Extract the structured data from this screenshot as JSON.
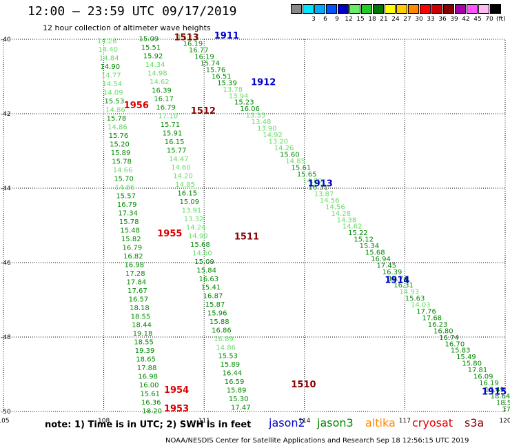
{
  "header": {
    "title": "12:00 – 23:59 UTC 09/17/2019",
    "subtitle": "12 hour collection of altimeter wave heights"
  },
  "color_scale": {
    "unit": "(ft)",
    "entries": [
      {
        "label": "",
        "color": "#888888"
      },
      {
        "label": "3",
        "color": "#00e5ff"
      },
      {
        "label": "6",
        "color": "#00aaff"
      },
      {
        "label": "9",
        "color": "#0055ff"
      },
      {
        "label": "12",
        "color": "#0000cc"
      },
      {
        "label": "15",
        "color": "#66ee66"
      },
      {
        "label": "18",
        "color": "#22cc22"
      },
      {
        "label": "21",
        "color": "#007700"
      },
      {
        "label": "24",
        "color": "#ffff00"
      },
      {
        "label": "27",
        "color": "#ffcc00"
      },
      {
        "label": "30",
        "color": "#ff8800"
      },
      {
        "label": "33",
        "color": "#ff0000"
      },
      {
        "label": "36",
        "color": "#cc0000"
      },
      {
        "label": "39",
        "color": "#880000"
      },
      {
        "label": "42",
        "color": "#aa00aa"
      },
      {
        "label": "45",
        "color": "#ff55ff"
      },
      {
        "label": "70",
        "color": "#ffbbee"
      },
      {
        "label": "",
        "color": "#000000"
      }
    ]
  },
  "map": {
    "lon_labels": [
      "105",
      "108",
      "111",
      "114",
      "117",
      "120"
    ],
    "lat_labels": [
      "-40",
      "-42",
      "-44",
      "-46",
      "-48",
      "-50"
    ],
    "grid_color": "#000000"
  },
  "tracks": {
    "colors": {
      "jason2": "#0000cc",
      "jason3": "#008800",
      "jason3_light": "#66dd66",
      "cryosat": "#dd0000",
      "s3a": "#880000"
    },
    "time_labels": [
      {
        "text": "1513",
        "sat": "s3a",
        "lon": 110.1,
        "lat": -40.03
      },
      {
        "text": "1911",
        "sat": "jason2",
        "lon": 111.3,
        "lat": -39.98
      },
      {
        "text": "1912",
        "sat": "jason2",
        "lon": 112.4,
        "lat": -41.23
      },
      {
        "text": "1956",
        "sat": "cryosat",
        "lon": 108.6,
        "lat": -41.85
      },
      {
        "text": "1512",
        "sat": "s3a",
        "lon": 110.6,
        "lat": -42.0
      },
      {
        "text": "1913",
        "sat": "jason2",
        "lon": 114.1,
        "lat": -43.95
      },
      {
        "text": "1955",
        "sat": "cryosat",
        "lon": 109.6,
        "lat": -45.3
      },
      {
        "text": "1511",
        "sat": "s3a",
        "lon": 111.9,
        "lat": -45.38
      },
      {
        "text": "1914",
        "sat": "jason2",
        "lon": 116.4,
        "lat": -46.55
      },
      {
        "text": "1510",
        "sat": "s3a",
        "lon": 113.6,
        "lat": -49.35
      },
      {
        "text": "1954",
        "sat": "cryosat",
        "lon": 109.8,
        "lat": -49.5
      },
      {
        "text": "1915",
        "sat": "jason2",
        "lon": 119.3,
        "lat": -49.55
      },
      {
        "text": "1953",
        "sat": "cryosat",
        "lon": 109.8,
        "lat": -50.0
      }
    ],
    "tracks": [
      {
        "name": "track-cryosat",
        "start": [
          107.8,
          -40.1
        ],
        "end": [
          109.15,
          -50.05
        ],
        "values": [
          {
            "v": "14.26",
            "l": true
          },
          {
            "v": "14.40",
            "l": true
          },
          {
            "v": "14.84",
            "l": true
          },
          {
            "v": "14.90",
            "l": false
          },
          {
            "v": "14.77",
            "l": true
          },
          {
            "v": "14.54",
            "l": true
          },
          {
            "v": "14.09",
            "l": true
          },
          {
            "v": "15.53",
            "l": false
          },
          {
            "v": "14.86",
            "l": true
          },
          {
            "v": "15.78",
            "l": false
          },
          {
            "v": "14.86",
            "l": true
          },
          {
            "v": "15.76",
            "l": false
          },
          {
            "v": "15.20",
            "l": false
          },
          {
            "v": "15.89",
            "l": false
          },
          {
            "v": "15.78",
            "l": false
          },
          {
            "v": "14.66",
            "l": true
          },
          {
            "v": "15.70",
            "l": false
          },
          {
            "v": "14.86",
            "l": true
          },
          {
            "v": "15.57",
            "l": false
          },
          {
            "v": "16.79",
            "l": false
          },
          {
            "v": "17.34",
            "l": false
          },
          {
            "v": "15.78",
            "l": false
          },
          {
            "v": "15.48",
            "l": false
          },
          {
            "v": "15.82",
            "l": false
          },
          {
            "v": "16.79",
            "l": false
          },
          {
            "v": "16.82",
            "l": false
          },
          {
            "v": "16.98",
            "l": false
          },
          {
            "v": "17.28",
            "l": false
          },
          {
            "v": "17.84",
            "l": false
          },
          {
            "v": "17.67",
            "l": false
          },
          {
            "v": "16.57",
            "l": false
          },
          {
            "v": "18.18",
            "l": false
          },
          {
            "v": "18.55",
            "l": false
          },
          {
            "v": "18.44",
            "l": false
          },
          {
            "v": "19.18",
            "l": false
          },
          {
            "v": "18.55",
            "l": false
          },
          {
            "v": "19.39",
            "l": false
          },
          {
            "v": "18.65",
            "l": false
          },
          {
            "v": "17.88",
            "l": false
          },
          {
            "v": "16.98",
            "l": false
          },
          {
            "v": "16.00",
            "l": false
          },
          {
            "v": "15.61",
            "l": false
          },
          {
            "v": "16.36",
            "l": false
          },
          {
            "v": "18.20",
            "l": false
          }
        ]
      },
      {
        "name": "track-s3a",
        "start": [
          109.05,
          -40.05
        ],
        "end": [
          111.8,
          -49.95
        ],
        "values": [
          {
            "v": "15.09",
            "l": false
          },
          {
            "v": "15.51",
            "l": false
          },
          {
            "v": "15.92",
            "l": false
          },
          {
            "v": "14.34",
            "l": true
          },
          {
            "v": "14.98",
            "l": true
          },
          {
            "v": "14.62",
            "l": true
          },
          {
            "v": "16.39",
            "l": false
          },
          {
            "v": "16.17",
            "l": false
          },
          {
            "v": "16.79",
            "l": false
          },
          {
            "v": "17.10",
            "l": true
          },
          {
            "v": "15.71",
            "l": false
          },
          {
            "v": "15.91",
            "l": false
          },
          {
            "v": "16.15",
            "l": false
          },
          {
            "v": "15.77",
            "l": false
          },
          {
            "v": "14.47",
            "l": true
          },
          {
            "v": "14.60",
            "l": true
          },
          {
            "v": "14.20",
            "l": true
          },
          {
            "v": "14.85",
            "l": true
          },
          {
            "v": "16.15",
            "l": false
          },
          {
            "v": "15.09",
            "l": false
          },
          {
            "v": "13.91",
            "l": true
          },
          {
            "v": "13.32",
            "l": true
          },
          {
            "v": "14.24",
            "l": true
          },
          {
            "v": "14.90",
            "l": true
          },
          {
            "v": "15.68",
            "l": false
          },
          {
            "v": "14.60",
            "l": true
          },
          {
            "v": "15.09",
            "l": false
          },
          {
            "v": "15.84",
            "l": false
          },
          {
            "v": "16.63",
            "l": false
          },
          {
            "v": "15.41",
            "l": false
          },
          {
            "v": "16.87",
            "l": false
          },
          {
            "v": "15.87",
            "l": false
          },
          {
            "v": "15.96",
            "l": false
          },
          {
            "v": "15.88",
            "l": false
          },
          {
            "v": "16.86",
            "l": false
          },
          {
            "v": "16.89",
            "l": true
          },
          {
            "v": "14.86",
            "l": true
          },
          {
            "v": "15.53",
            "l": false
          },
          {
            "v": "15.89",
            "l": false
          },
          {
            "v": "16.44",
            "l": false
          },
          {
            "v": "16.59",
            "l": false
          },
          {
            "v": "15.89",
            "l": false
          },
          {
            "v": "15.30",
            "l": false
          },
          {
            "v": "17.47",
            "l": false
          }
        ]
      },
      {
        "name": "track-jason",
        "start": [
          110.2,
          -40.0
        ],
        "end": [
          119.9,
          -50.0
        ],
        "values": [
          {
            "v": "14.33",
            "l": true
          },
          {
            "v": "16.19",
            "l": false
          },
          {
            "v": "16.77",
            "l": false
          },
          {
            "v": "16.19",
            "l": false
          },
          {
            "v": "15.74",
            "l": false
          },
          {
            "v": "15.76",
            "l": false
          },
          {
            "v": "16.51",
            "l": false
          },
          {
            "v": "15.39",
            "l": false
          },
          {
            "v": "13.78",
            "l": true
          },
          {
            "v": "13.94",
            "l": true
          },
          {
            "v": "15.23",
            "l": false
          },
          {
            "v": "16.06",
            "l": false
          },
          {
            "v": "13.35",
            "l": true
          },
          {
            "v": "13.48",
            "l": true
          },
          {
            "v": "13.90",
            "l": true
          },
          {
            "v": "14.92",
            "l": true
          },
          {
            "v": "13.20",
            "l": true
          },
          {
            "v": "14.26",
            "l": true
          },
          {
            "v": "15.60",
            "l": false
          },
          {
            "v": "14.85",
            "l": true
          },
          {
            "v": "15.61",
            "l": false
          },
          {
            "v": "15.65",
            "l": false
          },
          {
            "v": "14.09",
            "l": true
          },
          {
            "v": "16.31",
            "l": false
          },
          {
            "v": "13.87",
            "l": true
          },
          {
            "v": "14.56",
            "l": true
          },
          {
            "v": "14.56",
            "l": true
          },
          {
            "v": "14.28",
            "l": true
          },
          {
            "v": "14.38",
            "l": true
          },
          {
            "v": "14.62",
            "l": true
          },
          {
            "v": "15.22",
            "l": false
          },
          {
            "v": "15.12",
            "l": false
          },
          {
            "v": "15.34",
            "l": false
          },
          {
            "v": "15.68",
            "l": false
          },
          {
            "v": "16.94",
            "l": false
          },
          {
            "v": "17.45",
            "l": false
          },
          {
            "v": "16.39",
            "l": false
          },
          {
            "v": "16.74",
            "l": false
          },
          {
            "v": "16.31",
            "l": false
          },
          {
            "v": "14.93",
            "l": true
          },
          {
            "v": "15.63",
            "l": false
          },
          {
            "v": "14.03",
            "l": true
          },
          {
            "v": "17.76",
            "l": false
          },
          {
            "v": "17.68",
            "l": false
          },
          {
            "v": "16.23",
            "l": false
          },
          {
            "v": "16.80",
            "l": false
          },
          {
            "v": "16.74",
            "l": false
          },
          {
            "v": "16.70",
            "l": false
          },
          {
            "v": "15.83",
            "l": false
          },
          {
            "v": "15.49",
            "l": false
          },
          {
            "v": "15.80",
            "l": false
          },
          {
            "v": "17.81",
            "l": false
          },
          {
            "v": "16.09",
            "l": false
          },
          {
            "v": "16.19",
            "l": false
          },
          {
            "v": "17.49",
            "l": false
          },
          {
            "v": "18.64",
            "l": false
          },
          {
            "v": "18.56",
            "l": false
          },
          {
            "v": "17.33",
            "l": false
          }
        ]
      }
    ]
  },
  "footer": {
    "note": "note: 1) Time is in UTC; 2) SWH is in feet",
    "legend": [
      {
        "label": "jason2",
        "color": "#0000cc"
      },
      {
        "label": "jason3",
        "color": "#008800"
      },
      {
        "label": "altika",
        "color": "#ff8800"
      },
      {
        "label": "cryosat",
        "color": "#dd0000"
      },
      {
        "label": "s3a",
        "color": "#880000"
      }
    ],
    "credit": "NOAA/NESDIS Center for Satellite Applications and Research    Sep 18 12:56:15 UTC 2019"
  }
}
